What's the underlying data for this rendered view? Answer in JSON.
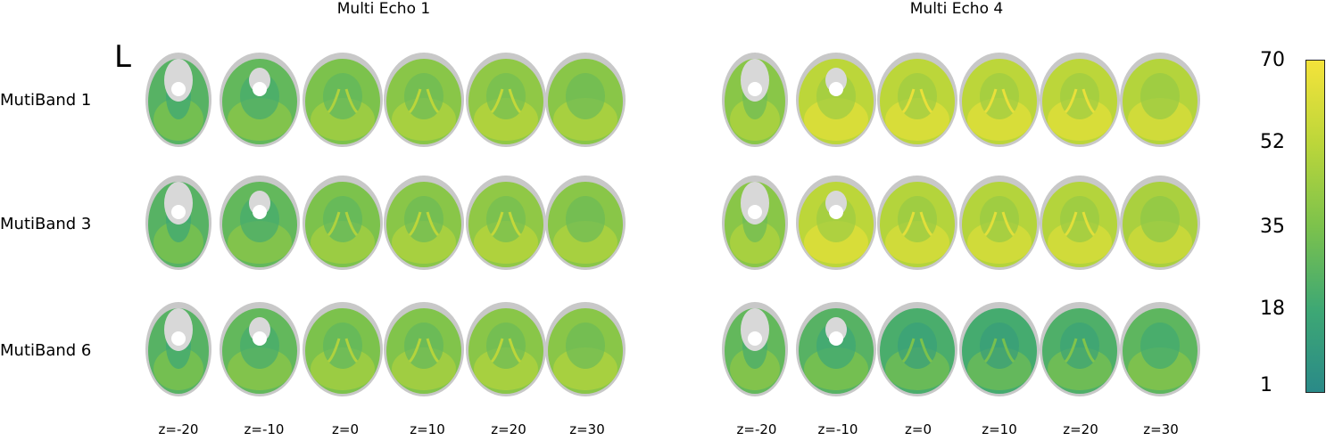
{
  "figure": {
    "orientation_label": "L",
    "columns": [
      {
        "title": "Multi Echo 1"
      },
      {
        "title": "Multi Echo 4"
      }
    ],
    "rows": [
      {
        "label": "MutiBand 1"
      },
      {
        "label": "MutiBand 3"
      },
      {
        "label": "MutiBand 6"
      }
    ],
    "slices": [
      "z=-20",
      "z=-10",
      "z=0",
      "z=10",
      "z=20",
      "z=30"
    ],
    "colorbar": {
      "ticks": [
        "70",
        "52",
        "35",
        "18",
        "1"
      ],
      "colors": [
        "#2a8a88",
        "#3ea874",
        "#7cc24c",
        "#bcd63a",
        "#f4e33a"
      ]
    },
    "intensity": [
      [
        [
          0.35,
          0.4,
          0.5,
          0.55,
          0.58,
          0.55
        ],
        [
          0.55,
          0.75,
          0.75,
          0.75,
          0.75,
          0.72
        ]
      ],
      [
        [
          0.35,
          0.4,
          0.5,
          0.55,
          0.58,
          0.55
        ],
        [
          0.55,
          0.75,
          0.72,
          0.72,
          0.72,
          0.68
        ]
      ],
      [
        [
          0.35,
          0.4,
          0.5,
          0.52,
          0.55,
          0.55
        ],
        [
          0.4,
          0.35,
          0.3,
          0.28,
          0.32,
          0.38
        ]
      ]
    ]
  }
}
